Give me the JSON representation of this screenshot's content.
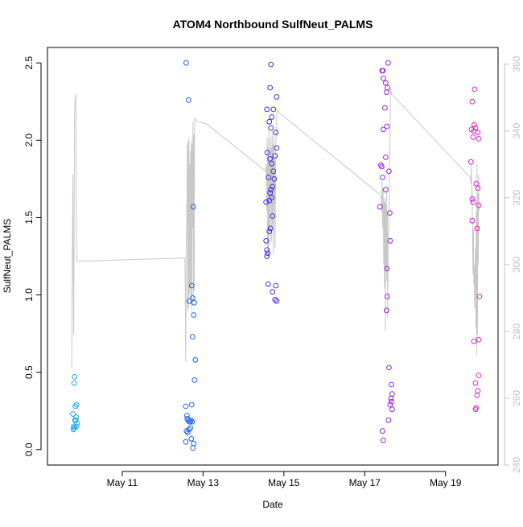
{
  "chart_data": {
    "type": "scatter",
    "title": "ATOM4 Northbound SulfNeut_PALMS",
    "xlabel": "Date",
    "ylabel": "SulfNeut_PALMS",
    "x_units": "days (May, day of month)",
    "x_ticks": [
      {
        "value": 11,
        "label": "May 11"
      },
      {
        "value": 13,
        "label": "May 13"
      },
      {
        "value": 15,
        "label": "May 15"
      },
      {
        "value": 17,
        "label": "May 17"
      },
      {
        "value": 19,
        "label": "May 19"
      }
    ],
    "xlim": [
      9.15,
      20.3
    ],
    "ylim": [
      -0.1,
      2.6
    ],
    "y_ticks": [
      "0.0",
      "0.5",
      "1.0",
      "1.5",
      "2.0",
      "2.5"
    ],
    "y2lim": [
      240,
      365
    ],
    "y2_ticks": [
      "240",
      "260",
      "280",
      "300",
      "320",
      "340",
      "360"
    ],
    "y2_color": "#c0c0c0",
    "grid": false,
    "point_series": [
      {
        "color": "#1aa6e6",
        "points": [
          [
            9.82,
            0.47
          ],
          [
            9.81,
            0.43
          ],
          [
            9.87,
            0.29
          ],
          [
            9.84,
            0.28
          ],
          [
            9.78,
            0.23
          ],
          [
            9.86,
            0.21
          ],
          [
            9.83,
            0.19
          ],
          [
            9.85,
            0.19
          ],
          [
            9.88,
            0.17
          ],
          [
            9.8,
            0.15
          ],
          [
            9.82,
            0.14
          ],
          [
            9.79,
            0.13
          ],
          [
            9.87,
            0.15
          ],
          [
            9.81,
            0.14
          ]
        ]
      },
      {
        "color": "#2166e8",
        "points": [
          [
            12.58,
            2.5
          ],
          [
            12.64,
            2.26
          ],
          [
            12.76,
            1.57
          ],
          [
            12.72,
            1.06
          ],
          [
            12.66,
            0.96
          ],
          [
            12.74,
            0.98
          ],
          [
            12.78,
            0.95
          ],
          [
            12.77,
            0.87
          ],
          [
            12.74,
            0.73
          ],
          [
            12.81,
            0.58
          ],
          [
            12.79,
            0.45
          ],
          [
            12.57,
            0.28
          ],
          [
            12.72,
            0.29
          ],
          [
            12.6,
            0.22
          ],
          [
            12.61,
            0.2
          ],
          [
            12.63,
            0.19
          ],
          [
            12.66,
            0.18
          ],
          [
            12.7,
            0.19
          ],
          [
            12.68,
            0.18
          ],
          [
            12.73,
            0.18
          ],
          [
            12.59,
            0.12
          ],
          [
            12.62,
            0.11
          ],
          [
            12.65,
            0.13
          ],
          [
            12.69,
            0.14
          ],
          [
            12.71,
            0.07
          ],
          [
            12.57,
            0.05
          ],
          [
            12.77,
            0.04
          ],
          [
            12.75,
            0.01
          ]
        ]
      },
      {
        "color": "#4a2ae0",
        "points": [
          [
            14.68,
            2.49
          ],
          [
            14.66,
            2.34
          ],
          [
            14.82,
            2.28
          ],
          [
            14.58,
            2.2
          ],
          [
            14.74,
            2.2
          ],
          [
            14.7,
            2.15
          ],
          [
            14.64,
            2.12
          ],
          [
            14.68,
            2.08
          ],
          [
            14.8,
            2.05
          ],
          [
            14.82,
            1.95
          ],
          [
            14.59,
            1.92
          ],
          [
            14.78,
            1.9
          ],
          [
            14.66,
            1.88
          ],
          [
            14.7,
            1.85
          ],
          [
            14.74,
            1.8
          ],
          [
            14.62,
            1.76
          ],
          [
            14.76,
            1.75
          ],
          [
            14.72,
            1.7
          ],
          [
            14.68,
            1.68
          ],
          [
            14.66,
            1.66
          ],
          [
            14.7,
            1.63
          ],
          [
            14.64,
            1.61
          ],
          [
            14.56,
            1.6
          ],
          [
            14.72,
            1.51
          ],
          [
            14.67,
            1.43
          ],
          [
            14.64,
            1.41
          ],
          [
            14.56,
            1.35
          ],
          [
            14.58,
            1.29
          ],
          [
            14.6,
            1.27
          ],
          [
            14.58,
            1.25
          ],
          [
            14.61,
            1.07
          ],
          [
            14.8,
            1.06
          ],
          [
            14.72,
            1.02
          ],
          [
            14.78,
            0.97
          ],
          [
            14.82,
            0.96
          ]
        ]
      },
      {
        "color": "#9a22dc",
        "points": [
          [
            17.58,
            2.5
          ],
          [
            17.43,
            2.45
          ],
          [
            17.45,
            2.45
          ],
          [
            17.46,
            2.4
          ],
          [
            17.52,
            2.37
          ],
          [
            17.56,
            2.34
          ],
          [
            17.54,
            2.31
          ],
          [
            17.5,
            2.21
          ],
          [
            17.55,
            2.09
          ],
          [
            17.46,
            2.07
          ],
          [
            17.52,
            1.89
          ],
          [
            17.4,
            1.84
          ],
          [
            17.42,
            1.83
          ],
          [
            17.6,
            1.8
          ],
          [
            17.44,
            1.76
          ],
          [
            17.52,
            1.68
          ],
          [
            17.38,
            1.57
          ],
          [
            17.62,
            1.53
          ],
          [
            17.63,
            1.35
          ],
          [
            17.55,
            1.17
          ],
          [
            17.56,
            0.99
          ],
          [
            17.54,
            0.9
          ],
          [
            17.6,
            0.53
          ],
          [
            17.66,
            0.42
          ],
          [
            17.68,
            0.36
          ],
          [
            17.65,
            0.33
          ],
          [
            17.66,
            0.31
          ],
          [
            17.63,
            0.29
          ],
          [
            17.68,
            0.26
          ],
          [
            17.59,
            0.19
          ],
          [
            17.44,
            0.12
          ],
          [
            17.46,
            0.06
          ]
        ]
      },
      {
        "color": "#e028cc",
        "points": [
          [
            19.72,
            2.33
          ],
          [
            19.66,
            2.25
          ],
          [
            19.71,
            2.1
          ],
          [
            19.74,
            2.08
          ],
          [
            19.7,
            2.06
          ],
          [
            19.64,
            2.07
          ],
          [
            19.8,
            2.05
          ],
          [
            19.68,
            2.02
          ],
          [
            19.82,
            2.01
          ],
          [
            19.63,
            1.86
          ],
          [
            19.76,
            1.72
          ],
          [
            19.66,
            1.62
          ],
          [
            19.8,
            1.69
          ],
          [
            19.68,
            1.6
          ],
          [
            19.82,
            1.58
          ],
          [
            19.66,
            1.48
          ],
          [
            19.78,
            1.43
          ],
          [
            19.84,
            0.99
          ],
          [
            19.82,
            0.71
          ],
          [
            19.7,
            0.7
          ],
          [
            19.82,
            0.48
          ],
          [
            19.74,
            0.43
          ],
          [
            19.8,
            0.38
          ],
          [
            19.78,
            0.35
          ],
          [
            19.74,
            0.26
          ],
          [
            19.76,
            0.27
          ]
        ]
      }
    ],
    "line_series": {
      "color": "#c8c8c8",
      "axis": "right",
      "points": [
        [
          9.75,
          269
        ],
        [
          9.76,
          291
        ],
        [
          9.78,
          327
        ],
        [
          9.79,
          295
        ],
        [
          9.8,
          279
        ],
        [
          9.82,
          345
        ],
        [
          9.83,
          349
        ],
        [
          9.85,
          351
        ],
        [
          9.87,
          303
        ],
        [
          9.88,
          301
        ],
        [
          12.55,
          302
        ],
        [
          12.56,
          293
        ],
        [
          12.57,
          271
        ],
        [
          12.58,
          301
        ],
        [
          12.6,
          319
        ],
        [
          12.61,
          336
        ],
        [
          12.62,
          286
        ],
        [
          12.63,
          337
        ],
        [
          12.64,
          287
        ],
        [
          12.65,
          338
        ],
        [
          12.66,
          291
        ],
        [
          12.67,
          330
        ],
        [
          12.68,
          293
        ],
        [
          12.69,
          334
        ],
        [
          12.7,
          288
        ],
        [
          12.71,
          337
        ],
        [
          12.72,
          286
        ],
        [
          12.73,
          336
        ],
        [
          12.74,
          311
        ],
        [
          12.75,
          343
        ],
        [
          12.76,
          289
        ],
        [
          12.77,
          339
        ],
        [
          12.78,
          292
        ],
        [
          12.79,
          341
        ],
        [
          12.8,
          344
        ],
        [
          12.82,
          343
        ],
        [
          13.1,
          342
        ],
        [
          14.55,
          328
        ],
        [
          14.56,
          330
        ],
        [
          14.57,
          324
        ],
        [
          14.58,
          316
        ],
        [
          14.59,
          338
        ],
        [
          14.6,
          305
        ],
        [
          14.61,
          335
        ],
        [
          14.62,
          302
        ],
        [
          14.63,
          341
        ],
        [
          14.64,
          310
        ],
        [
          14.65,
          330
        ],
        [
          14.66,
          306
        ],
        [
          14.67,
          338
        ],
        [
          14.68,
          318
        ],
        [
          14.69,
          335
        ],
        [
          14.7,
          307
        ],
        [
          14.71,
          340
        ],
        [
          14.72,
          312
        ],
        [
          14.73,
          336
        ],
        [
          14.74,
          303
        ],
        [
          14.75,
          339
        ],
        [
          14.76,
          318
        ],
        [
          14.77,
          332
        ],
        [
          14.78,
          305
        ],
        [
          14.8,
          335
        ],
        [
          14.83,
          346
        ],
        [
          17.38,
          321
        ],
        [
          17.4,
          320
        ],
        [
          17.41,
          320
        ],
        [
          17.42,
          316
        ],
        [
          17.43,
          325
        ],
        [
          17.44,
          311
        ],
        [
          17.45,
          323
        ],
        [
          17.46,
          318
        ],
        [
          17.47,
          300
        ],
        [
          17.48,
          319
        ],
        [
          17.49,
          293
        ],
        [
          17.5,
          320
        ],
        [
          17.51,
          280
        ],
        [
          17.52,
          318
        ],
        [
          17.53,
          298
        ],
        [
          17.54,
          322
        ],
        [
          17.55,
          295
        ],
        [
          17.56,
          315
        ],
        [
          17.57,
          284
        ],
        [
          17.58,
          308
        ],
        [
          17.6,
          311
        ],
        [
          17.62,
          332
        ],
        [
          17.64,
          353
        ],
        [
          17.66,
          351
        ],
        [
          17.75,
          350
        ],
        [
          19.62,
          326
        ],
        [
          19.63,
          324
        ],
        [
          19.64,
          330
        ],
        [
          19.65,
          318
        ],
        [
          19.66,
          322
        ],
        [
          19.67,
          306
        ],
        [
          19.68,
          297
        ],
        [
          19.69,
          311
        ],
        [
          19.7,
          294
        ],
        [
          19.71,
          300
        ],
        [
          19.72,
          287
        ],
        [
          19.73,
          295
        ],
        [
          19.74,
          305
        ],
        [
          19.75,
          281
        ],
        [
          19.76,
          316
        ],
        [
          19.77,
          273
        ],
        [
          19.78,
          330
        ],
        [
          19.79,
          279
        ],
        [
          19.8,
          321
        ],
        [
          19.81,
          300
        ],
        [
          19.82,
          327
        ],
        [
          19.83,
          316
        ]
      ]
    }
  }
}
